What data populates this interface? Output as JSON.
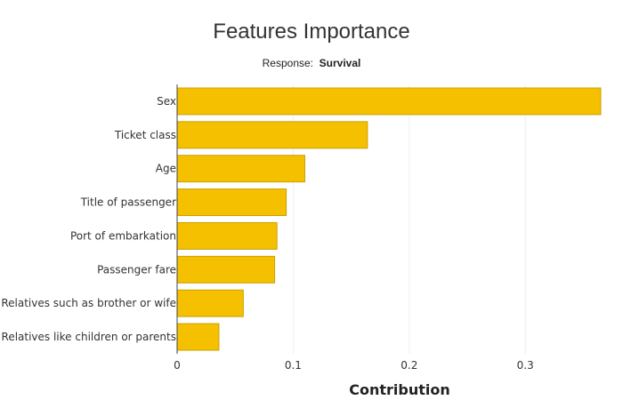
{
  "chart_data": {
    "type": "bar",
    "orientation": "horizontal",
    "title": "Features Importance",
    "subtitle_label": "Response:",
    "subtitle_value": "Survival",
    "xlabel": "Contribution",
    "ylabel": "",
    "xlim": [
      0,
      0.365
    ],
    "x_ticks": [
      0,
      0.1,
      0.2,
      0.3
    ],
    "x_tick_labels": [
      "0",
      "0.1",
      "0.2",
      "0.3"
    ],
    "grid": "vertical",
    "legend": "none",
    "categories": [
      "Sex",
      "Ticket class",
      "Age",
      "Title of passenger",
      "Port of embarkation",
      "Passenger fare",
      "Relatives such as brother or wife",
      "Relatives like children or parents"
    ],
    "values": [
      0.365,
      0.164,
      0.11,
      0.094,
      0.086,
      0.084,
      0.057,
      0.036
    ],
    "colors": {
      "bar_fill": "#f5c000",
      "bar_stroke": "#c9a000",
      "grid": "#eeeeee",
      "axis": "#444444"
    }
  }
}
